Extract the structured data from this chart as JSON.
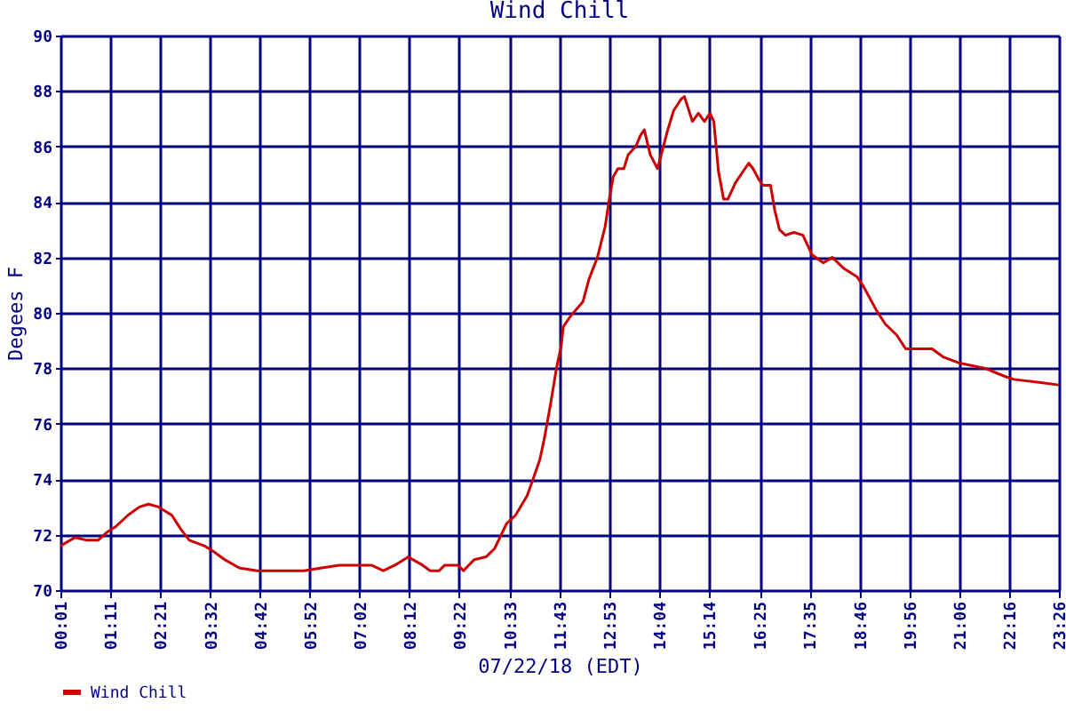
{
  "chart_data": {
    "type": "line",
    "title": "Wind Chill",
    "xlabel": "07/22/18 (EDT)",
    "ylabel": "Degees F",
    "xlim": [
      0.0167,
      23.4333
    ],
    "ylim": [
      70,
      90
    ],
    "yticks": [
      70,
      72,
      74,
      76,
      78,
      80,
      82,
      84,
      86,
      88,
      90
    ],
    "xticks": [
      {
        "value": 0.0167,
        "label": "00:01"
      },
      {
        "value": 1.1833,
        "label": "01:11"
      },
      {
        "value": 2.35,
        "label": "02:21"
      },
      {
        "value": 3.5333,
        "label": "03:32"
      },
      {
        "value": 4.7,
        "label": "04:42"
      },
      {
        "value": 5.8667,
        "label": "05:52"
      },
      {
        "value": 7.0333,
        "label": "07:02"
      },
      {
        "value": 8.2,
        "label": "08:12"
      },
      {
        "value": 9.3667,
        "label": "09:22"
      },
      {
        "value": 10.55,
        "label": "10:33"
      },
      {
        "value": 11.7167,
        "label": "11:43"
      },
      {
        "value": 12.8833,
        "label": "12:53"
      },
      {
        "value": 14.0667,
        "label": "14:04"
      },
      {
        "value": 15.2333,
        "label": "15:14"
      },
      {
        "value": 16.4167,
        "label": "16:25"
      },
      {
        "value": 17.5833,
        "label": "17:35"
      },
      {
        "value": 18.7667,
        "label": "18:46"
      },
      {
        "value": 19.9333,
        "label": "19:56"
      },
      {
        "value": 21.1,
        "label": "21:06"
      },
      {
        "value": 22.2667,
        "label": "22:16"
      },
      {
        "value": 23.4333,
        "label": "23:26"
      }
    ],
    "grid": true,
    "legend": "bottom",
    "marker": "none",
    "line_style": "solid",
    "series": [
      {
        "name": "Wind Chill",
        "color": "#cc0000",
        "x": [
          0.02,
          0.36,
          0.64,
          0.9,
          1.12,
          1.32,
          1.6,
          1.87,
          2.08,
          2.32,
          2.63,
          2.84,
          3.04,
          3.39,
          3.6,
          3.87,
          4.21,
          4.63,
          5.18,
          5.73,
          6.14,
          6.56,
          7.31,
          7.59,
          7.86,
          8.18,
          8.28,
          8.51,
          8.69,
          8.9,
          9.03,
          9.34,
          9.47,
          9.72,
          10.0,
          10.2,
          10.48,
          10.69,
          10.96,
          11.1,
          11.26,
          11.37,
          11.51,
          11.65,
          11.76,
          11.81,
          11.99,
          12.27,
          12.41,
          12.61,
          12.79,
          12.89,
          12.98,
          13.09,
          13.23,
          13.33,
          13.51,
          13.62,
          13.71,
          13.85,
          14.02,
          14.26,
          14.4,
          14.57,
          14.65,
          14.84,
          14.98,
          15.12,
          15.25,
          15.34,
          15.45,
          15.57,
          15.67,
          15.85,
          16.16,
          16.26,
          16.4,
          16.49,
          16.67,
          16.77,
          16.88,
          17.02,
          17.22,
          17.43,
          17.64,
          17.91,
          18.12,
          18.39,
          18.7,
          18.87,
          19.15,
          19.36,
          19.63,
          19.84,
          20.46,
          20.73,
          21.08,
          21.7,
          22.18,
          22.38,
          22.93,
          23.43
        ],
        "values": [
          71.6,
          71.9,
          71.8,
          71.8,
          72.1,
          72.3,
          72.7,
          73.0,
          73.1,
          73.0,
          72.7,
          72.2,
          71.8,
          71.6,
          71.4,
          71.1,
          70.8,
          70.7,
          70.7,
          70.7,
          70.8,
          70.9,
          70.9,
          70.7,
          70.9,
          71.2,
          71.1,
          70.9,
          70.7,
          70.7,
          70.9,
          70.9,
          70.7,
          71.1,
          71.2,
          71.5,
          72.4,
          72.7,
          73.4,
          74.0,
          74.7,
          75.5,
          76.7,
          78.0,
          78.8,
          79.5,
          79.9,
          80.4,
          81.2,
          82.0,
          83.1,
          84.1,
          84.9,
          85.2,
          85.2,
          85.7,
          86.0,
          86.4,
          86.6,
          85.7,
          85.2,
          86.6,
          87.3,
          87.7,
          87.8,
          86.9,
          87.2,
          86.9,
          87.2,
          86.9,
          85.1,
          84.1,
          84.1,
          84.7,
          85.4,
          85.2,
          84.8,
          84.6,
          84.6,
          83.7,
          83.0,
          82.8,
          82.9,
          82.8,
          82.1,
          81.8,
          82.0,
          81.6,
          81.3,
          80.9,
          80.1,
          79.6,
          79.2,
          78.7,
          78.7,
          78.4,
          78.2,
          78.0,
          77.7,
          77.6,
          77.5,
          77.4
        ]
      }
    ]
  }
}
